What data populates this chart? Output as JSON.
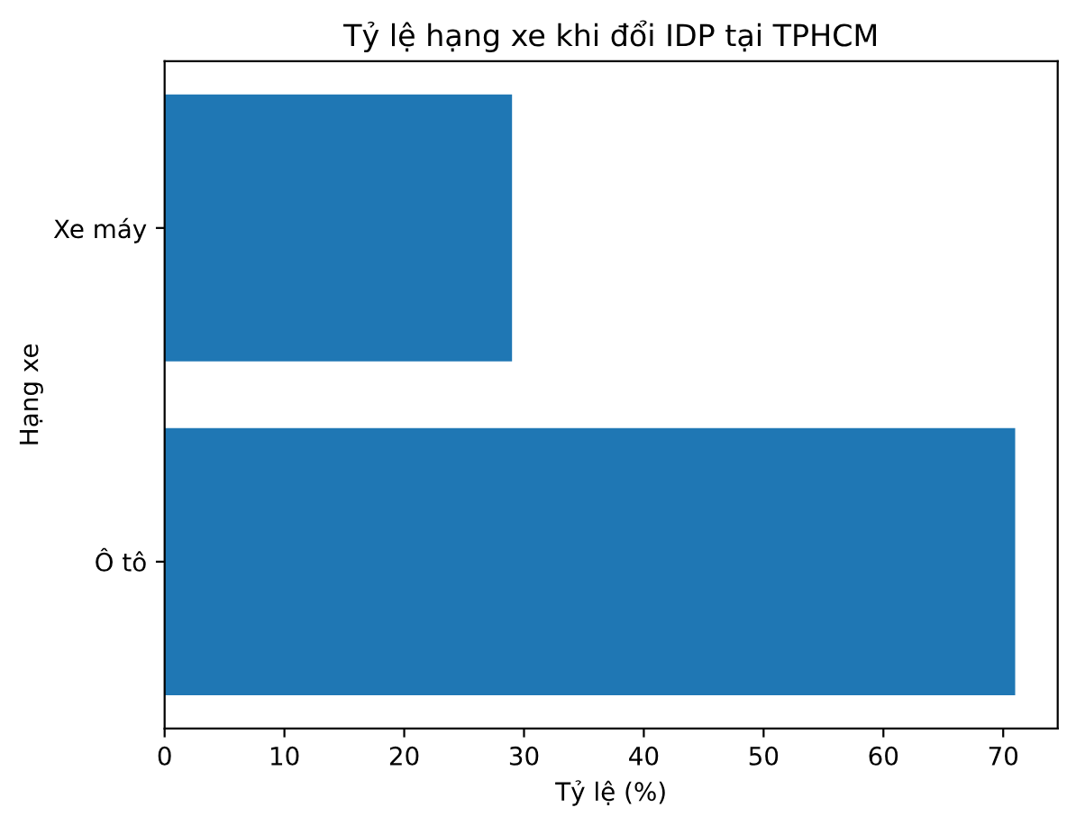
{
  "chart_data": {
    "type": "bar",
    "orientation": "horizontal",
    "title": "Tỷ lệ hạng xe khi đổi IDP tại TPHCM",
    "xlabel": "Tỷ lệ (%)",
    "ylabel": "Hạng xe",
    "categories": [
      "Xe máy",
      "Ô tô"
    ],
    "values": [
      29,
      71
    ],
    "color": "#1f77b4",
    "xlim": [
      0,
      74.55
    ],
    "xticks": [
      0,
      10,
      20,
      30,
      40,
      50,
      60,
      70
    ],
    "grid": false,
    "legend": false
  }
}
